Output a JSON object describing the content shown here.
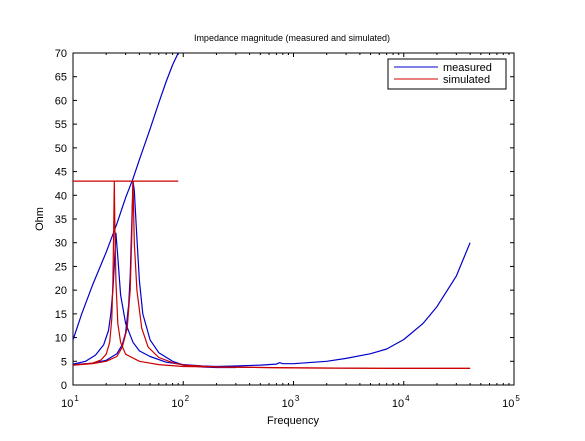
{
  "chart_data": {
    "type": "line",
    "title": "Impedance magnitude (measured and simulated)",
    "xlabel": "Frequency",
    "ylabel": "Ohm",
    "xscale": "log",
    "xlim": [
      10,
      100000
    ],
    "ylim": [
      0,
      70
    ],
    "x_tick_labels": [
      {
        "base": "10",
        "exp": "1"
      },
      {
        "base": "10",
        "exp": "2"
      },
      {
        "base": "10",
        "exp": "3"
      },
      {
        "base": "10",
        "exp": "4"
      },
      {
        "base": "10",
        "exp": "5"
      }
    ],
    "y_ticks": [
      0,
      5,
      10,
      15,
      20,
      25,
      30,
      35,
      40,
      45,
      50,
      55,
      60,
      65,
      70
    ],
    "grid": false,
    "legend_position": "top-right",
    "series": [
      {
        "name": "measured",
        "color": "#0000cc",
        "lines": [
          [
            [
              10,
              9.5
            ],
            [
              12,
              15
            ],
            [
              15,
              21
            ],
            [
              20,
              28
            ],
            [
              25,
              34
            ],
            [
              30,
              39.5
            ],
            [
              35,
              43.5
            ],
            [
              40,
              47.5
            ],
            [
              50,
              54
            ],
            [
              60,
              59.5
            ],
            [
              70,
              64
            ],
            [
              80,
              67.5
            ],
            [
              90,
              70
            ]
          ],
          [
            [
              10,
              4.4
            ],
            [
              13,
              5.0
            ],
            [
              16,
              6.3
            ],
            [
              19,
              8.5
            ],
            [
              21,
              11.5
            ],
            [
              22,
              15
            ],
            [
              23,
              20
            ],
            [
              23.8,
              26
            ],
            [
              24.5,
              32
            ],
            [
              25.5,
              27
            ],
            [
              27,
              19
            ],
            [
              30,
              13
            ],
            [
              35,
              9
            ],
            [
              40,
              7.2
            ],
            [
              50,
              6
            ],
            [
              70,
              4.8
            ],
            [
              100,
              4.3
            ],
            [
              150,
              4.0
            ],
            [
              200,
              3.9
            ],
            [
              300,
              4.0
            ],
            [
              500,
              4.2
            ],
            [
              700,
              4.4
            ],
            [
              750,
              4.7
            ],
            [
              800,
              4.5
            ],
            [
              1000,
              4.5
            ],
            [
              2000,
              5.0
            ],
            [
              3000,
              5.6
            ],
            [
              5000,
              6.6
            ],
            [
              7000,
              7.6
            ],
            [
              10000,
              9.6
            ],
            [
              15000,
              13
            ],
            [
              20000,
              16.5
            ],
            [
              30000,
              23
            ],
            [
              40000,
              30
            ]
          ],
          [
            [
              10,
              4.3
            ],
            [
              15,
              4.6
            ],
            [
              20,
              5.2
            ],
            [
              25,
              6.6
            ],
            [
              28,
              8.5
            ],
            [
              30,
              11
            ],
            [
              32,
              17
            ],
            [
              33,
              23
            ],
            [
              34,
              33
            ],
            [
              35,
              43
            ],
            [
              36,
              41
            ],
            [
              38,
              31
            ],
            [
              40,
              22
            ],
            [
              43,
              15
            ],
            [
              50,
              9.5
            ],
            [
              60,
              6.8
            ],
            [
              80,
              5.0
            ],
            [
              100,
              4.2
            ],
            [
              150,
              3.8
            ],
            [
              200,
              3.7
            ],
            [
              300,
              3.7
            ]
          ]
        ]
      },
      {
        "name": "simulated",
        "color": "#cc0000",
        "lines": [
          [
            [
              10,
              43
            ],
            [
              90,
              43
            ]
          ],
          [
            [
              10,
              4.2
            ],
            [
              15,
              4.6
            ],
            [
              18,
              5.3
            ],
            [
              20,
              6.5
            ],
            [
              21.5,
              9
            ],
            [
              22.5,
              14
            ],
            [
              23,
              22
            ],
            [
              23.4,
              33
            ],
            [
              23.7,
              43
            ],
            [
              24,
              33
            ],
            [
              24.5,
              22
            ],
            [
              25.5,
              13
            ],
            [
              27,
              9
            ],
            [
              30,
              6.5
            ],
            [
              40,
              5
            ],
            [
              60,
              4.3
            ],
            [
              100,
              3.9
            ],
            [
              1000,
              3.6
            ],
            [
              10000,
              3.5
            ],
            [
              40000,
              3.5
            ]
          ],
          [
            [
              10,
              4.2
            ],
            [
              15,
              4.5
            ],
            [
              20,
              5.0
            ],
            [
              25,
              6.0
            ],
            [
              28,
              8.0
            ],
            [
              31,
              12
            ],
            [
              33,
              20
            ],
            [
              34,
              30
            ],
            [
              35,
              43
            ],
            [
              36,
              30
            ],
            [
              38,
              20
            ],
            [
              42,
              12
            ],
            [
              48,
              8
            ],
            [
              60,
              5.8
            ],
            [
              80,
              4.7
            ],
            [
              100,
              4.2
            ],
            [
              200,
              3.8
            ],
            [
              1000,
              3.6
            ],
            [
              10000,
              3.5
            ],
            [
              40000,
              3.5
            ]
          ]
        ]
      }
    ]
  }
}
